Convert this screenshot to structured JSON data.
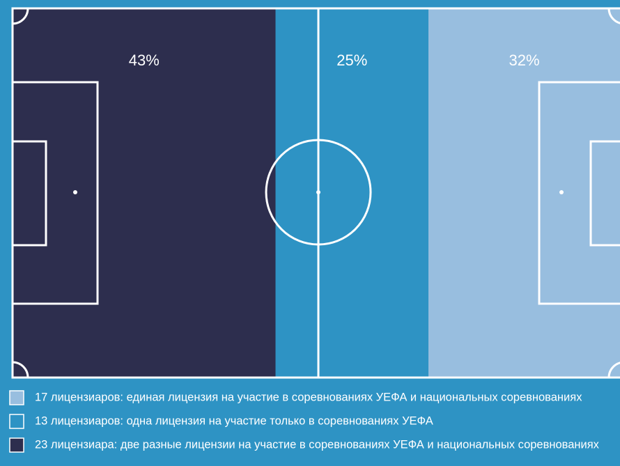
{
  "chart_data": {
    "type": "stacked-bar",
    "xlim": [
      0,
      100
    ],
    "series": [
      {
        "name": "23 лицензиара: две разные лицензии на участие в соревнованиях УЕФА и национальных соревнованиях",
        "color": "#2d2e4e",
        "values": [
          43
        ],
        "value_labels": [
          "43%"
        ]
      },
      {
        "name": "13 лицензиаров: одна лицензия на участие только в соревнованиях УЕФА",
        "color": "#2e93c4",
        "values": [
          25
        ],
        "value_labels": [
          "25%"
        ]
      },
      {
        "name": "17 лицензиаров: единая лицензия на участие в соревнованиях УЕФА и национальных соревнованиях",
        "color": "#98bedf",
        "values": [
          32
        ],
        "value_labels": [
          "32%"
        ]
      }
    ]
  }
}
